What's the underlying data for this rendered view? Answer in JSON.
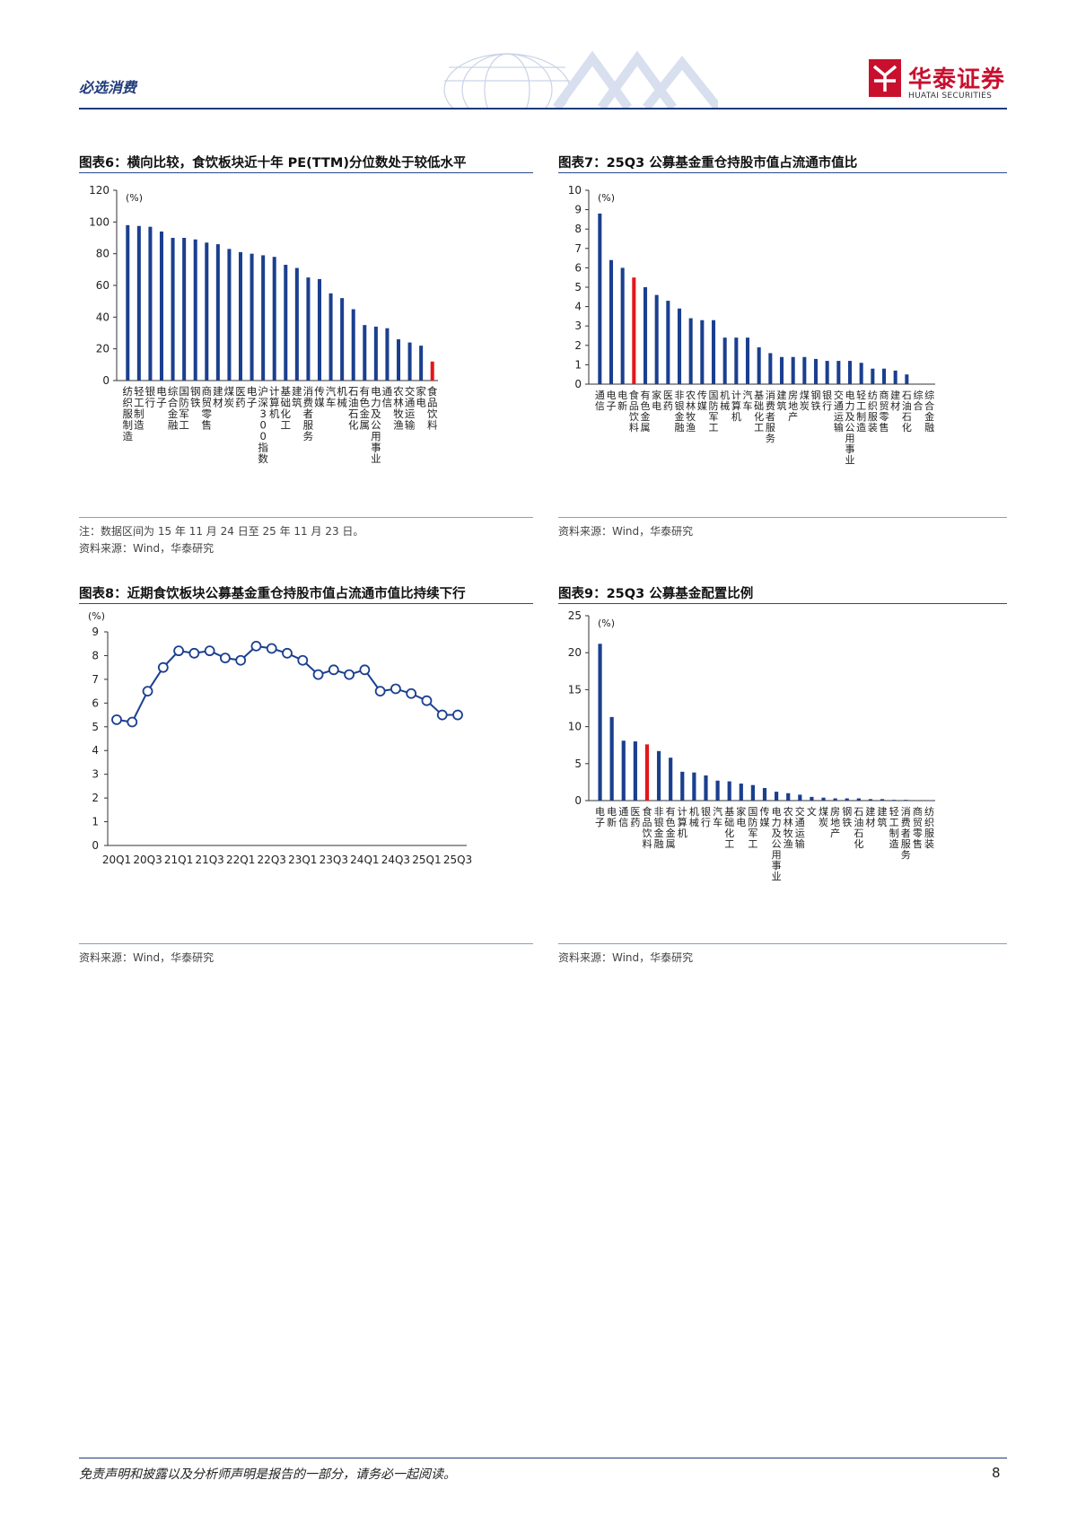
{
  "header": {
    "section": "必选消费",
    "logo_cn": "华泰证券",
    "logo_en": "HUATAI SECURITIES",
    "colors": {
      "brand_red": "#c8102e",
      "navy": "#1f3b7a"
    }
  },
  "figures": [
    {
      "title": "图表6：横向比较，食饮板块近十年 PE(TTM)分位数处于较低水平",
      "note": "注：数据区间为 15 年 11 月 24 日至 25 年 11 月 23 日。",
      "source": "资料来源：Wind，华泰研究",
      "chart_data": {
        "type": "bar",
        "unit_label": "(%)",
        "ylim": [
          0,
          120
        ],
        "yticks": [
          "0",
          "20",
          "40",
          "60",
          "80",
          "100",
          "120"
        ],
        "highlight_color": "#e3161b",
        "bar_color": "#1b3f8f",
        "categories": [
          "纺织服制造",
          "轻工制造",
          "银行",
          "电子",
          "综合金融",
          "国防军工",
          "钢铁",
          "商贸零售",
          "建材",
          "煤炭",
          "医药",
          "电子",
          "沪深300指数",
          "计算机",
          "基础化工",
          "建筑",
          "消费者服务",
          "传媒",
          "汽车",
          "机械",
          "石油石化",
          "有色金属",
          "电力及公用事业",
          "通信",
          "农林牧渔",
          "交通运输",
          "家电",
          "食品饮料"
        ],
        "labels": [
          "纺织服制造",
          "轻工制造",
          "银行",
          "电子",
          "综合金融",
          "国防军工",
          "钢铁",
          "商贸零售",
          "建材",
          "煤炭",
          "医药",
          "电子",
          "沪深300指数",
          "计算机",
          "基础化工",
          "建筑",
          "消费者服务",
          "传媒",
          "汽车",
          "机械",
          "石油石化",
          "有色金属",
          "电力及公用事业",
          "通信",
          "农林牧渔",
          "交通运输",
          "家电",
          "食品饮料"
        ],
        "values": [
          98,
          97.5,
          97,
          94,
          90,
          90,
          89,
          87,
          86,
          83,
          81,
          80,
          79,
          78,
          73,
          71,
          65,
          64,
          55,
          52,
          45,
          35,
          34,
          33,
          26,
          24,
          22,
          12
        ],
        "highlight_index": 27
      }
    },
    {
      "title": "图表7：25Q3 公募基金重仓持股市值占流通市值比",
      "source": "资料来源：Wind，华泰研究",
      "chart_data": {
        "type": "bar",
        "unit_label": "(%)",
        "ylim": [
          0,
          10
        ],
        "yticks": [
          "0",
          "1",
          "2",
          "3",
          "4",
          "5",
          "6",
          "7",
          "8",
          "9",
          "10"
        ],
        "highlight_color": "#e3161b",
        "bar_color": "#1b3f8f",
        "labels": [
          "通信",
          "电子",
          "电新",
          "食品饮料",
          "有色金属",
          "家电",
          "医药",
          "非银金融",
          "农林牧渔",
          "传媒",
          "国防军工",
          "机械",
          "计算机",
          "汽车",
          "基础化工",
          "消费者服务",
          "建筑",
          "房地产",
          "煤炭",
          "钢铁",
          "银行",
          "交通运输",
          "电力及公用事业",
          "轻工制造",
          "纺织服装",
          "商贸零售",
          "建材",
          "石油石化",
          "综合",
          "综合金融"
        ],
        "values": [
          8.8,
          6.4,
          6.0,
          5.5,
          5.0,
          4.6,
          4.3,
          3.9,
          3.4,
          3.3,
          3.3,
          2.4,
          2.4,
          2.4,
          1.9,
          1.6,
          1.4,
          1.4,
          1.4,
          1.3,
          1.2,
          1.2,
          1.2,
          1.1,
          0.8,
          0.8,
          0.7,
          0.5,
          0,
          0
        ],
        "highlight_index": 3
      }
    },
    {
      "title": "图表8：近期食饮板块公募基金重仓持股市值占流通市值比持续下行",
      "source": "资料来源：Wind，华泰研究",
      "chart_data": {
        "type": "line",
        "unit_label": "(%)",
        "ylim": [
          0,
          9
        ],
        "yticks": [
          "0",
          "1",
          "2",
          "3",
          "4",
          "5",
          "6",
          "7",
          "8",
          "9"
        ],
        "line_color": "#1b3f8f",
        "x": [
          "20Q1",
          "20Q2",
          "20Q3",
          "20Q4",
          "21Q1",
          "21Q2",
          "21Q3",
          "21Q4",
          "22Q1",
          "22Q2",
          "22Q3",
          "22Q4",
          "23Q1",
          "23Q2",
          "23Q3",
          "23Q4",
          "24Q1",
          "24Q2",
          "24Q3",
          "24Q4",
          "25Q1",
          "25Q2",
          "25Q3"
        ],
        "xtick_labels": [
          "20Q1",
          "20Q3",
          "21Q1",
          "21Q3",
          "22Q1",
          "22Q3",
          "23Q1",
          "23Q3",
          "24Q1",
          "24Q3",
          "25Q1",
          "25Q3"
        ],
        "values": [
          5.3,
          5.2,
          6.5,
          7.5,
          8.2,
          8.1,
          8.2,
          7.9,
          7.8,
          8.4,
          8.3,
          8.1,
          7.8,
          7.2,
          7.4,
          7.2,
          7.4,
          6.5,
          6.6,
          6.4,
          6.1,
          5.5,
          5.5
        ]
      }
    },
    {
      "title": "图表9：25Q3 公募基金配置比例",
      "source": "资料来源：Wind，华泰研究",
      "chart_data": {
        "type": "bar",
        "unit_label": "(%)",
        "ylim": [
          0,
          25
        ],
        "yticks": [
          "0",
          "5",
          "10",
          "15",
          "20",
          "25"
        ],
        "highlight_color": "#e3161b",
        "bar_color": "#1b3f8f",
        "labels": [
          "电子",
          "电新",
          "通信",
          "医药",
          "食品饮料",
          "非银金融",
          "有色金属",
          "计算机",
          "机械",
          "银行",
          "汽车",
          "基础化工",
          "家电",
          "国防军工",
          "传媒",
          "电力及公用事业",
          "农林牧渔",
          "交通运输",
          "文",
          "煤炭",
          "房地产",
          "钢铁",
          "石油石化",
          "建材",
          "建筑",
          "轻工制造",
          "消费者服务",
          "商贸零售",
          "纺织服装"
        ],
        "values": [
          21.2,
          11.3,
          8.1,
          8.0,
          7.6,
          6.7,
          5.8,
          3.9,
          3.8,
          3.4,
          2.7,
          2.6,
          2.3,
          2.1,
          1.7,
          1.2,
          1.0,
          0.8,
          0.5,
          0.4,
          0.3,
          0.3,
          0.3,
          0.2,
          0.2,
          0.1,
          0.1,
          0.05,
          0.05
        ],
        "highlight_index": 4
      }
    }
  ],
  "footer": {
    "disclaimer": "免责声明和披露以及分析师声明是报告的一部分，请务必一起阅读。",
    "page_number": "8"
  }
}
